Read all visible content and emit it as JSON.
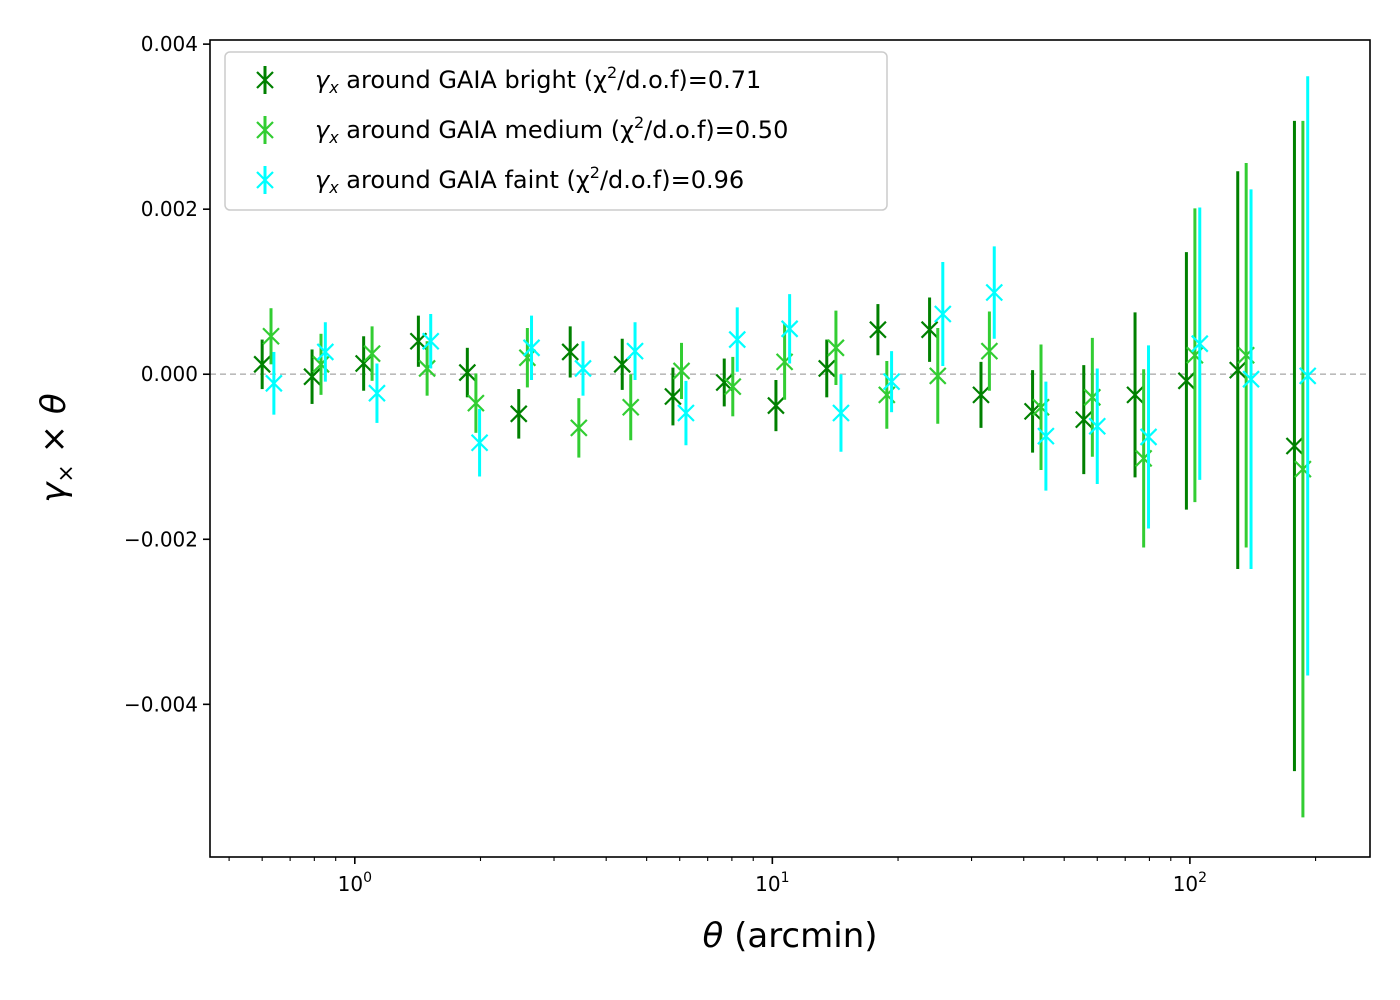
{
  "chart_data": {
    "type": "scatter",
    "title": "",
    "xlabel": "θ (arcmin)",
    "ylabel": "γ× × θ",
    "xscale": "log",
    "xlim": [
      0.45,
      270
    ],
    "ylim": [
      -0.00585,
      0.00405
    ],
    "xticks": [
      {
        "value": 1,
        "base": "10",
        "exp": "0"
      },
      {
        "value": 10,
        "base": "10",
        "exp": "1"
      },
      {
        "value": 100,
        "base": "10",
        "exp": "2"
      }
    ],
    "yticks": [
      {
        "value": 0.004,
        "label": "0.004"
      },
      {
        "value": 0.002,
        "label": "0.002"
      },
      {
        "value": 0.0,
        "label": "0.000"
      },
      {
        "value": -0.002,
        "label": "−0.002"
      },
      {
        "value": -0.004,
        "label": "−0.004"
      }
    ],
    "reference_line": {
      "y": 0.0,
      "style": "dashed",
      "color": "#bbbbbb"
    },
    "legend_position": "top-left",
    "series": [
      {
        "name": "bright",
        "legend_prefix": "γ",
        "legend_sub": "x",
        "legend_middle": " around GAIA  bright (χ",
        "legend_sup": "2",
        "legend_suffix": "/d.o.f)=0.71",
        "color": "#008000",
        "x": [
          0.6,
          0.79,
          1.05,
          1.42,
          1.86,
          2.47,
          3.28,
          4.37,
          5.78,
          7.67,
          10.2,
          13.5,
          17.9,
          23.8,
          31.6,
          42.0,
          55.7,
          73.9,
          98.1,
          130.2,
          178.0
        ],
        "y": [
          0.00012,
          -3e-05,
          0.00013,
          0.0004,
          2e-05,
          -0.00048,
          0.00027,
          0.00012,
          -0.00027,
          -0.0001,
          -0.00038,
          7e-05,
          0.00054,
          0.00054,
          -0.00025,
          -0.00045,
          -0.00055,
          -0.00025,
          -8e-05,
          5e-05,
          -0.00087
        ],
        "err": [
          0.0003,
          0.00033,
          0.00033,
          0.00031,
          0.0003,
          0.0003,
          0.00031,
          0.00031,
          0.00035,
          0.00029,
          0.00031,
          0.00035,
          0.00031,
          0.00039,
          0.0004,
          0.0005,
          0.00066,
          0.001,
          0.00156,
          0.00241,
          0.00394
        ]
      },
      {
        "name": "medium",
        "legend_prefix": "γ",
        "legend_sub": "x",
        "legend_middle": " around GAIA  medium (χ",
        "legend_sup": "2",
        "legend_suffix": "/d.o.f)=0.50",
        "color": "#32cd32",
        "x": [
          0.63,
          0.83,
          1.1,
          1.49,
          1.95,
          2.59,
          3.44,
          4.58,
          6.06,
          8.04,
          10.7,
          14.2,
          18.8,
          24.9,
          33.1,
          44.0,
          58.4,
          77.5,
          102.8,
          136.4,
          186.5
        ],
        "y": [
          0.00046,
          0.00012,
          0.00025,
          7e-05,
          -0.00035,
          0.0002,
          -0.00065,
          -0.0004,
          4e-05,
          -0.00015,
          0.00015,
          0.00032,
          -0.00025,
          -2e-05,
          0.00028,
          -0.0004,
          -0.00028,
          -0.00102,
          0.00023,
          0.00023,
          -0.00115
        ],
        "err": [
          0.00034,
          0.00037,
          0.00033,
          0.00033,
          0.00036,
          0.00036,
          0.00036,
          0.0004,
          0.00034,
          0.00036,
          0.00046,
          0.00045,
          0.00041,
          0.00058,
          0.00048,
          0.00076,
          0.00072,
          0.00108,
          0.00178,
          0.00233,
          0.00422
        ]
      },
      {
        "name": "faint",
        "legend_prefix": "γ",
        "legend_sub": "x",
        "legend_middle": " around GAIA  faint (χ",
        "legend_sup": "2",
        "legend_suffix": "/d.o.f)=0.96",
        "color": "#00ffff",
        "x": [
          0.64,
          0.85,
          1.13,
          1.52,
          1.99,
          2.65,
          3.52,
          4.69,
          6.21,
          8.24,
          11.0,
          14.6,
          19.3,
          25.6,
          34.0,
          45.2,
          60.0,
          79.6,
          105.6,
          140.1,
          191.5
        ],
        "y": [
          -0.00011,
          0.00027,
          -0.00023,
          0.0004,
          -0.00083,
          0.00032,
          7e-05,
          0.00028,
          -0.00047,
          0.00042,
          0.00055,
          -0.00047,
          -9e-05,
          0.00073,
          0.00099,
          -0.00075,
          -0.00063,
          -0.00076,
          0.00037,
          -6e-05,
          -2e-05
        ],
        "err": [
          0.00038,
          0.00036,
          0.00036,
          0.00033,
          0.00041,
          0.00039,
          0.00033,
          0.00035,
          0.00039,
          0.00039,
          0.00042,
          0.00047,
          0.00037,
          0.00063,
          0.00056,
          0.00066,
          0.0007,
          0.00111,
          0.00165,
          0.0023,
          0.00363
        ]
      }
    ]
  }
}
